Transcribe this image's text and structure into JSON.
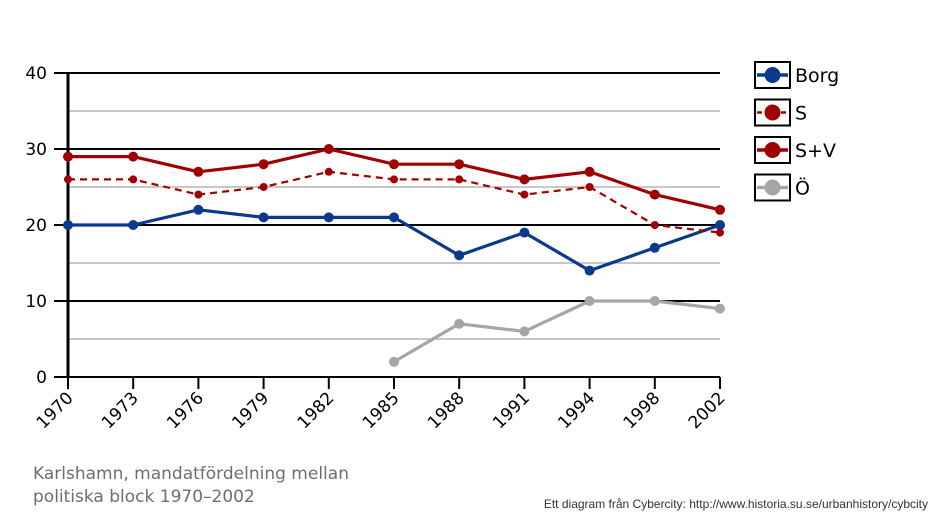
{
  "chart_data": {
    "type": "line",
    "categories": [
      "1970",
      "1973",
      "1976",
      "1979",
      "1982",
      "1985",
      "1988",
      "1991",
      "1994",
      "1998",
      "2002"
    ],
    "ylim": [
      0,
      40
    ],
    "yticks": [
      0,
      10,
      20,
      30,
      40
    ],
    "minor_gridlines": [
      5,
      15,
      25,
      35
    ],
    "series": [
      {
        "name": "Borg",
        "color": "#0a3a8c",
        "style": "solid",
        "width": "thick",
        "values": [
          20,
          20,
          22,
          21,
          21,
          21,
          16,
          19,
          14,
          17,
          20
        ]
      },
      {
        "name": "S",
        "color": "#a00000",
        "style": "dashed",
        "width": "thin",
        "values": [
          26,
          26,
          24,
          25,
          27,
          26,
          26,
          24,
          25,
          20,
          19
        ]
      },
      {
        "name": "S+V",
        "color": "#a00000",
        "style": "solid",
        "width": "thick",
        "values": [
          29,
          29,
          27,
          28,
          30,
          28,
          28,
          26,
          27,
          24,
          22
        ]
      },
      {
        "name": "Ö",
        "color": "#a6a6a6",
        "style": "solid",
        "width": "thick",
        "values": [
          null,
          null,
          null,
          null,
          null,
          2,
          7,
          6,
          10,
          10,
          9
        ]
      }
    ],
    "legend_position": "right"
  },
  "caption": {
    "line1": "Karlshamn, mandatfördelning mellan",
    "line2": "politiska block 1970–2002"
  },
  "credit": "Ett diagram från Cybercity: http://www.historia.su.se/urbanhistory/cybcity"
}
